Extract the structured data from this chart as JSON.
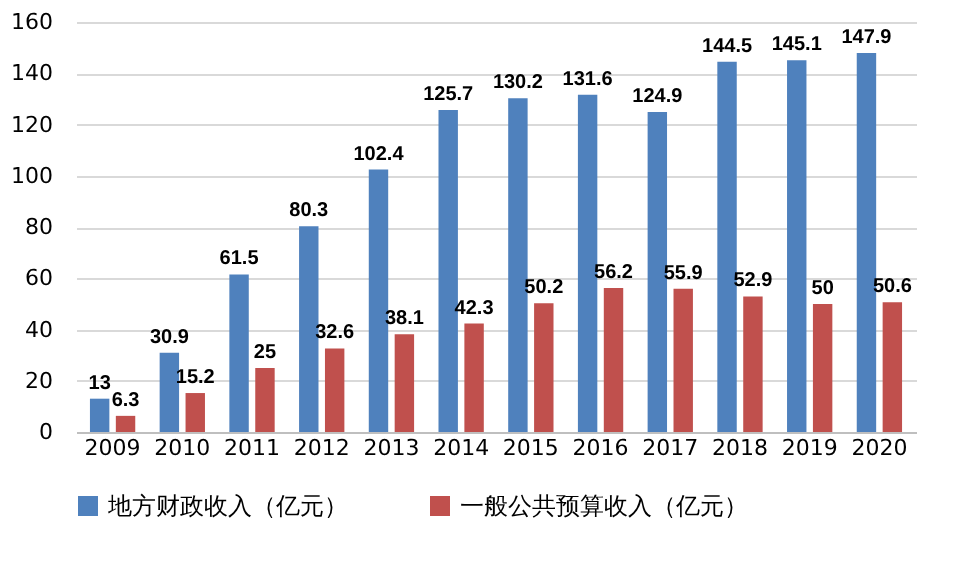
{
  "chart_data": {
    "type": "bar",
    "categories": [
      "2009",
      "2010",
      "2011",
      "2012",
      "2013",
      "2014",
      "2015",
      "2016",
      "2017",
      "2018",
      "2019",
      "2020"
    ],
    "series": [
      {
        "name": "地方财政收入（亿元）",
        "color": "#4f81bd",
        "values": [
          13,
          30.9,
          61.5,
          80.3,
          102.4,
          125.7,
          130.2,
          131.6,
          124.9,
          144.5,
          145.1,
          147.9
        ]
      },
      {
        "name": "一般公共预算收入（亿元）",
        "color": "#c0504d",
        "values": [
          6.3,
          15.2,
          25,
          32.6,
          38.1,
          42.3,
          50.2,
          56.2,
          55.9,
          52.9,
          50,
          50.6
        ]
      }
    ],
    "ylim": [
      0,
      160
    ],
    "yticks": [
      0,
      20,
      40,
      60,
      80,
      100,
      120,
      140,
      160
    ],
    "grid": "y",
    "legend": "bottom",
    "data_labels": true
  }
}
